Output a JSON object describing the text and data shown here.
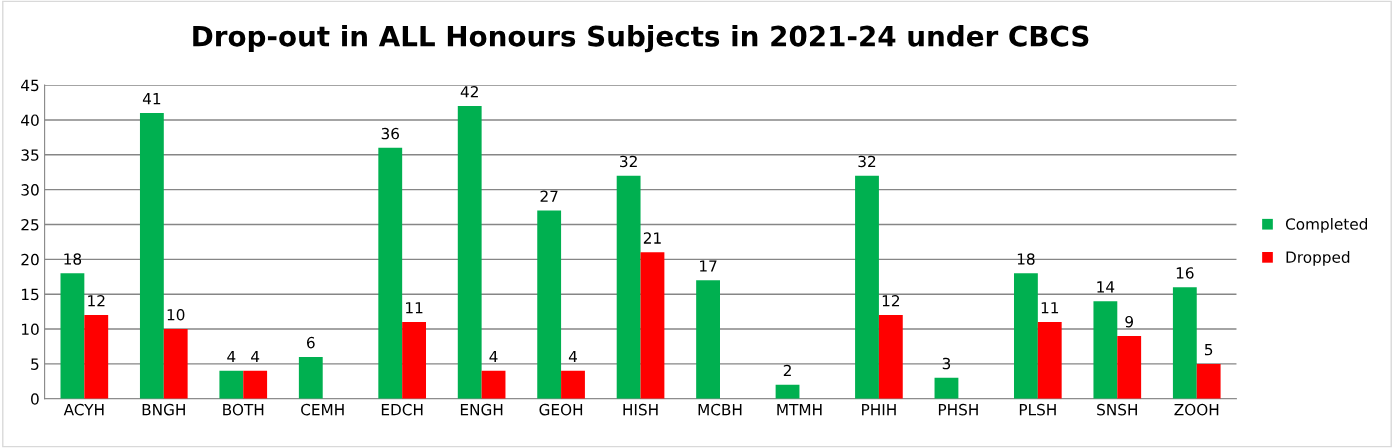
{
  "chart_data": {
    "type": "bar",
    "title": "Drop-out in ALL Honours Subjects in 2021-24 under CBCS",
    "categories": [
      "ACYH",
      "BNGH",
      "BOTH",
      "CEMH",
      "EDCH",
      "ENGH",
      "GEOH",
      "HISH",
      "MCBH",
      "MTMH",
      "PHIH",
      "PHSH",
      "PLSH",
      "SNSH",
      "ZOOH"
    ],
    "series": [
      {
        "name": "Completed",
        "color": "#00b050",
        "values": [
          18,
          41,
          4,
          6,
          36,
          42,
          27,
          32,
          17,
          2,
          32,
          3,
          18,
          14,
          16
        ]
      },
      {
        "name": "Dropped",
        "color": "#ff0000",
        "values": [
          12,
          10,
          4,
          null,
          11,
          4,
          4,
          21,
          null,
          null,
          12,
          null,
          11,
          9,
          5
        ]
      }
    ],
    "ylim": [
      0,
      45
    ],
    "yticks": [
      0,
      5,
      10,
      15,
      20,
      25,
      30,
      35,
      40,
      45
    ],
    "grid": "y",
    "legend": "right",
    "data_labels": true
  }
}
